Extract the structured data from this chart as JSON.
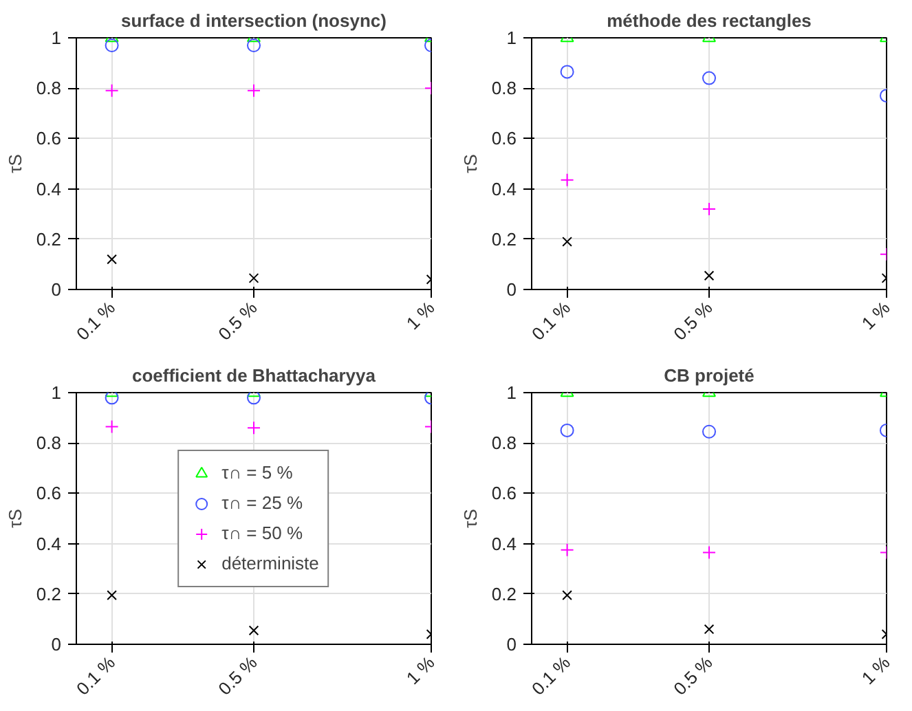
{
  "chart_data": [
    {
      "type": "scatter",
      "title": "surface d intersection (nosync)",
      "ylabel": "τS",
      "x": [
        0.1,
        0.5,
        1
      ],
      "xlim": [
        0,
        1
      ],
      "xticks": [
        {
          "value": 0.1,
          "label": "0.1 %"
        },
        {
          "value": 0.5,
          "label": "0.5 %"
        },
        {
          "value": 1,
          "label": "1 %"
        }
      ],
      "ylim": [
        0,
        1
      ],
      "yticks": [
        0,
        0.2,
        0.4,
        0.6,
        0.8,
        1
      ],
      "grid": true,
      "legend": false,
      "series": [
        {
          "color": "#00ff00",
          "marker": "triangle",
          "values": [
            1,
            1,
            1
          ]
        },
        {
          "color": "#4455ff",
          "marker": "circle",
          "values": [
            0.97,
            0.97,
            0.97
          ]
        },
        {
          "color": "#ff00ff",
          "marker": "cross",
          "values": [
            0.79,
            0.79,
            0.8
          ]
        },
        {
          "color": "#000000",
          "marker": "x",
          "values": [
            0.12,
            0.045,
            0.04
          ]
        }
      ]
    },
    {
      "type": "scatter",
      "title": "méthode des rectangles",
      "ylabel": "τS",
      "x": [
        0.1,
        0.5,
        1
      ],
      "xlim": [
        0,
        1
      ],
      "xticks": [
        {
          "value": 0.1,
          "label": "0.1 %"
        },
        {
          "value": 0.5,
          "label": "0.5 %"
        },
        {
          "value": 1,
          "label": "1 %"
        }
      ],
      "ylim": [
        0,
        1
      ],
      "yticks": [
        0,
        0.2,
        0.4,
        0.6,
        0.8,
        1
      ],
      "grid": true,
      "legend": false,
      "series": [
        {
          "color": "#00ff00",
          "marker": "triangle",
          "values": [
            1,
            1,
            1
          ]
        },
        {
          "color": "#4455ff",
          "marker": "circle",
          "values": [
            0.865,
            0.84,
            0.77
          ]
        },
        {
          "color": "#ff00ff",
          "marker": "cross",
          "values": [
            0.435,
            0.32,
            0.14
          ]
        },
        {
          "color": "#000000",
          "marker": "x",
          "values": [
            0.19,
            0.055,
            0.045
          ]
        }
      ]
    },
    {
      "type": "scatter",
      "title": "coefficient de Bhattacharyya",
      "ylabel": "τS",
      "x": [
        0.1,
        0.5,
        1
      ],
      "xlim": [
        0,
        1
      ],
      "xticks": [
        {
          "value": 0.1,
          "label": "0.1 %"
        },
        {
          "value": 0.5,
          "label": "0.5 %"
        },
        {
          "value": 1,
          "label": "1 %"
        }
      ],
      "ylim": [
        0,
        1
      ],
      "yticks": [
        0,
        0.2,
        0.4,
        0.6,
        0.8,
        1
      ],
      "grid": true,
      "legend": "center",
      "series": [
        {
          "name": "τ∩ = 5 %",
          "color": "#00ff00",
          "marker": "triangle",
          "values": [
            1,
            1,
            1
          ]
        },
        {
          "name": "τ∩ = 25 %",
          "color": "#4455ff",
          "marker": "circle",
          "values": [
            0.98,
            0.98,
            0.98
          ]
        },
        {
          "name": "τ∩ = 50 %",
          "color": "#ff00ff",
          "marker": "cross",
          "values": [
            0.865,
            0.86,
            0.865
          ]
        },
        {
          "name": "déterministe",
          "color": "#000000",
          "marker": "x",
          "values": [
            0.195,
            0.055,
            0.04
          ]
        }
      ]
    },
    {
      "type": "scatter",
      "title": "CB projeté",
      "ylabel": "τS",
      "x": [
        0.1,
        0.5,
        1
      ],
      "xlim": [
        0,
        1
      ],
      "xticks": [
        {
          "value": 0.1,
          "label": "0.1 %"
        },
        {
          "value": 0.5,
          "label": "0.5 %"
        },
        {
          "value": 1,
          "label": "1 %"
        }
      ],
      "ylim": [
        0,
        1
      ],
      "yticks": [
        0,
        0.2,
        0.4,
        0.6,
        0.8,
        1
      ],
      "grid": true,
      "legend": false,
      "series": [
        {
          "color": "#00ff00",
          "marker": "triangle",
          "values": [
            1,
            1,
            1
          ]
        },
        {
          "color": "#4455ff",
          "marker": "circle",
          "values": [
            0.85,
            0.845,
            0.85
          ]
        },
        {
          "color": "#ff00ff",
          "marker": "cross",
          "values": [
            0.375,
            0.365,
            0.365
          ]
        },
        {
          "color": "#000000",
          "marker": "x",
          "values": [
            0.195,
            0.06,
            0.04
          ]
        }
      ]
    }
  ]
}
